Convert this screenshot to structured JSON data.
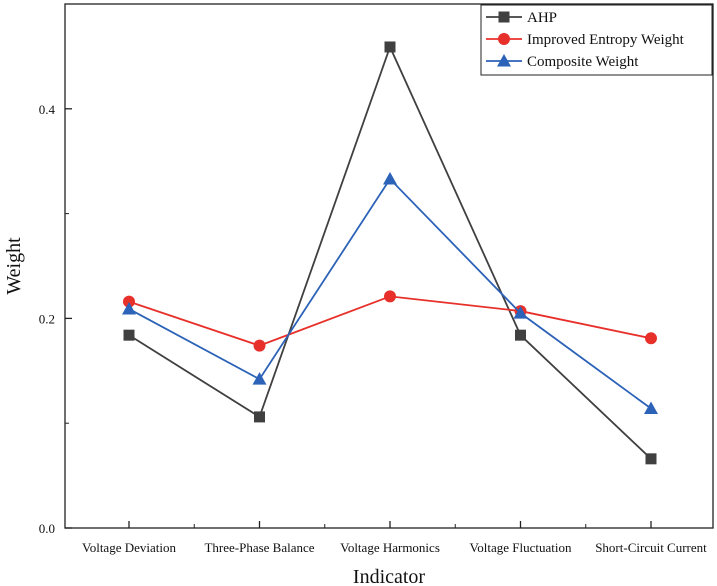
{
  "chart_data": {
    "type": "line",
    "categories": [
      "Voltage Deviation",
      "Three-Phase Balance",
      "Voltage Harmonics",
      "Voltage Fluctuation",
      "Short-Circuit Current"
    ],
    "series": [
      {
        "name": "AHP",
        "values": [
          0.184,
          0.106,
          0.459,
          0.184,
          0.066
        ],
        "color": "#404040",
        "marker": "square"
      },
      {
        "name": "Improved Entropy Weight",
        "values": [
          0.216,
          0.174,
          0.221,
          0.207,
          0.181
        ],
        "color": "#e8302b",
        "marker": "circle"
      },
      {
        "name": "Composite Weight",
        "values": [
          0.209,
          0.142,
          0.333,
          0.205,
          0.114
        ],
        "color": "#2c63b8",
        "marker": "triangle"
      }
    ],
    "xlabel": "Indicator",
    "ylabel": "Weight",
    "ylim": [
      0.0,
      0.5
    ],
    "yticks": [
      "0.0",
      "0.2",
      "0.4"
    ],
    "legend_position": "top-right",
    "grid": false
  }
}
